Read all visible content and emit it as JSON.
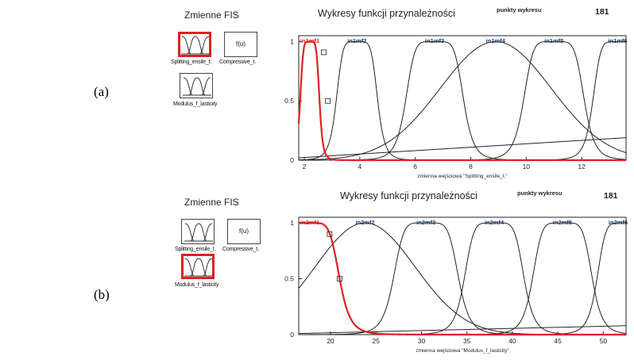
{
  "panels": [
    {
      "id": "a",
      "panel_label": "(a)",
      "fis_title": "Zmienne FIS",
      "inputs": [
        "Splitting_ensile_t.",
        "Modulus_f_lasticity"
      ],
      "output_box": "f(u)",
      "output_name": "Compressive_t.",
      "plot_title": "Wykresy funkcji przynależności",
      "points_label": "punkty wykresu",
      "points_value": "181",
      "mf_labels": [
        "in1mf1",
        "in1mf2",
        "in1mf3",
        "in1mf4",
        "in1mf5",
        "in1mf6"
      ],
      "x_ticks": [
        "2",
        "4",
        "6",
        "8",
        "10",
        "12"
      ],
      "y_ticks": [
        "0",
        "0.5",
        "1"
      ],
      "xlabel": "zmienna wejściowa \"Splitting_ensile_t.\"",
      "selected_input": 0,
      "selected_mf": 0
    },
    {
      "id": "b",
      "panel_label": "(b)",
      "fis_title": "Zmienne FIS",
      "inputs": [
        "Splitting_ensile_t.",
        "Modulus_f_lasticity"
      ],
      "output_box": "f(u)",
      "output_name": "Compressive_t.",
      "plot_title": "Wykresy funkcji przynależności",
      "points_label": "punkty wykresu",
      "points_value": "181",
      "mf_labels": [
        "in2mf1",
        "in2mf2",
        "in2mf3",
        "in2mf4",
        "in2mf5",
        "in2mf6"
      ],
      "x_ticks": [
        "20",
        "25",
        "30",
        "35",
        "40",
        "45",
        "50"
      ],
      "y_ticks": [
        "0",
        "0.5",
        "1"
      ],
      "xlabel": "zmienna wejściowa \"Modulus_f_lasticity\"",
      "selected_input": 1,
      "selected_mf": 0
    }
  ],
  "chart_data": [
    {
      "type": "line",
      "xlim": [
        1.8,
        13.6
      ],
      "ylim": [
        0,
        1.05
      ],
      "x_ticks": [
        2,
        4,
        6,
        8,
        10,
        12
      ],
      "series": [
        {
          "name": "in1mf1",
          "shape": "gbell",
          "a": 0.35,
          "b": 3,
          "c": 2.2,
          "color": "#e02020"
        },
        {
          "name": "in1mf2",
          "shape": "gbell",
          "a": 0.75,
          "b": 3,
          "c": 3.9,
          "color": "#222222"
        },
        {
          "name": "in1mf3",
          "shape": "gbell",
          "a": 1.05,
          "b": 3,
          "c": 6.7,
          "color": "#222222"
        },
        {
          "name": "in1mf4",
          "shape": "gauss",
          "sigma": 2.0,
          "c": 8.9,
          "color": "#222222"
        },
        {
          "name": "in1mf5",
          "shape": "gbell",
          "a": 1.1,
          "b": 3,
          "c": 11.0,
          "color": "#222222"
        },
        {
          "name": "in1mf6",
          "shape": "gbell",
          "a": 0.9,
          "b": 3,
          "c": 13.3,
          "color": "#222222"
        },
        {
          "name": "",
          "shape": "line",
          "points": [
            [
              1.8,
              0.02
            ],
            [
              13.6,
              0.19
            ]
          ],
          "color": "#222222"
        }
      ],
      "markers": [
        [
          2.7,
          0.91
        ],
        [
          2.85,
          0.5
        ]
      ]
    },
    {
      "type": "line",
      "xlim": [
        16.5,
        52.5
      ],
      "ylim": [
        0,
        1.05
      ],
      "x_ticks": [
        20,
        25,
        30,
        35,
        40,
        45,
        50
      ],
      "series": [
        {
          "name": "in2mf1",
          "shape": "gbell",
          "a": 3.5,
          "b": 3,
          "c": 17.5,
          "color": "#e02020"
        },
        {
          "name": "in2mf2",
          "shape": "gauss",
          "sigma": 5.5,
          "c": 23.8,
          "color": "#222222"
        },
        {
          "name": "in2mf3",
          "shape": "gbell",
          "a": 3.6,
          "b": 3,
          "c": 30.5,
          "color": "#222222"
        },
        {
          "name": "in2mf4",
          "shape": "gbell",
          "a": 3.3,
          "b": 3,
          "c": 38.0,
          "color": "#222222"
        },
        {
          "name": "in2mf5",
          "shape": "gbell",
          "a": 3.3,
          "b": 3,
          "c": 45.5,
          "color": "#222222"
        },
        {
          "name": "in2mf6",
          "shape": "gbell",
          "a": 3.0,
          "b": 3,
          "c": 52.3,
          "color": "#222222"
        },
        {
          "name": "",
          "shape": "line",
          "points": [
            [
              16.5,
              0.01
            ],
            [
              52.5,
              0.08
            ]
          ],
          "color": "#222222"
        }
      ],
      "markers": [
        [
          19.9,
          0.9
        ],
        [
          21.0,
          0.5
        ]
      ]
    }
  ]
}
